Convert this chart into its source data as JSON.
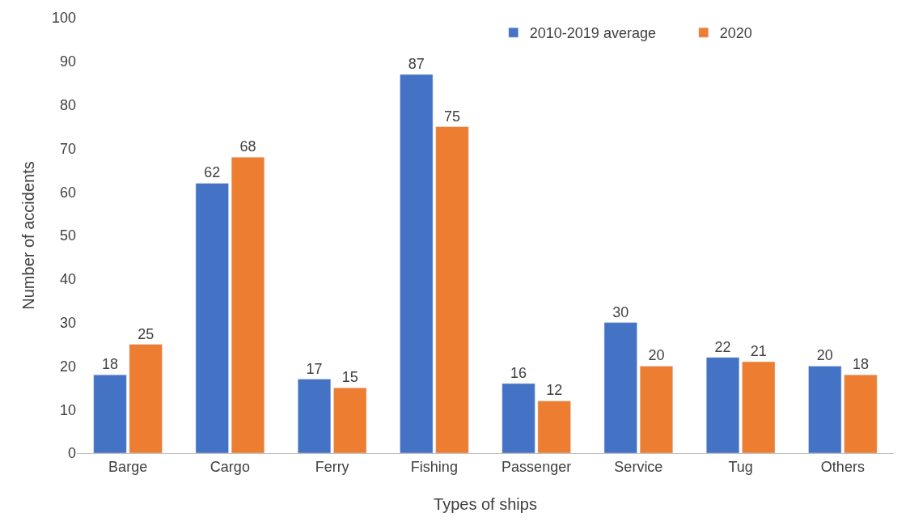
{
  "chart_data": {
    "type": "bar",
    "xlabel": "Types of ships",
    "ylabel": "Number of accidents",
    "categories": [
      "Barge",
      "Cargo",
      "Ferry",
      "Fishing",
      "Passenger",
      "Service",
      "Tug",
      "Others"
    ],
    "series": [
      {
        "name": "2010-2019 average",
        "color": "#4472c4",
        "values": [
          18,
          62,
          17,
          87,
          16,
          30,
          22,
          20
        ]
      },
      {
        "name": "2020",
        "color": "#ed7d31",
        "values": [
          25,
          68,
          15,
          75,
          12,
          20,
          21,
          18
        ]
      }
    ],
    "ylim": [
      0,
      100
    ],
    "yticks": [
      0,
      10,
      20,
      30,
      40,
      50,
      60,
      70,
      80,
      90,
      100
    ],
    "grid": false,
    "legend": "top right",
    "data_labels": true
  }
}
